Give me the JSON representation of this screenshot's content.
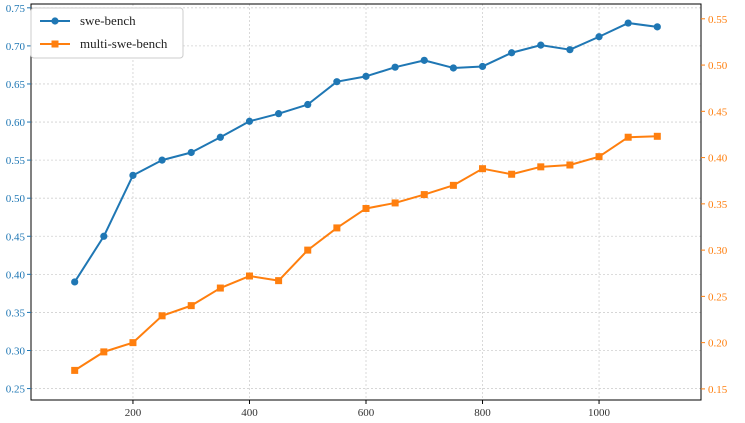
{
  "chart_data": {
    "type": "line",
    "title": "",
    "xlabel": "",
    "ylabel": "",
    "x": [
      100,
      150,
      200,
      250,
      300,
      350,
      400,
      450,
      500,
      550,
      600,
      650,
      700,
      750,
      800,
      850,
      900,
      950,
      1000,
      1050,
      1100
    ],
    "xlim": [
      25,
      1175
    ],
    "x_ticks": [
      200,
      400,
      600,
      800,
      1000
    ],
    "x_tick_labels": [
      "200",
      "400",
      "600",
      "800",
      "1000"
    ],
    "y_left": {
      "ylim": [
        0.235,
        0.755
      ],
      "ticks": [
        0.25,
        0.3,
        0.35,
        0.4,
        0.45,
        0.5,
        0.55,
        0.6,
        0.65,
        0.7,
        0.75
      ],
      "tick_labels": [
        "0.25",
        "0.30",
        "0.35",
        "0.40",
        "0.45",
        "0.50",
        "0.55",
        "0.60",
        "0.65",
        "0.70",
        "0.75"
      ],
      "color": "#1f77b4"
    },
    "y_right": {
      "ylim": [
        0.138,
        0.566
      ],
      "ticks": [
        0.15,
        0.2,
        0.25,
        0.3,
        0.35,
        0.4,
        0.45,
        0.5,
        0.55
      ],
      "tick_labels": [
        "0.15",
        "0.20",
        "0.25",
        "0.30",
        "0.35",
        "0.40",
        "0.45",
        "0.50",
        "0.55"
      ],
      "color": "#ff7f0e"
    },
    "series": [
      {
        "name": "swe-bench",
        "axis": "left",
        "color": "#1f77b4",
        "marker": "circle",
        "values": [
          0.39,
          0.45,
          0.53,
          0.55,
          0.56,
          0.58,
          0.601,
          0.611,
          0.623,
          0.653,
          0.66,
          0.672,
          0.681,
          0.671,
          0.673,
          0.691,
          0.701,
          0.695,
          0.712,
          0.73,
          0.725
        ]
      },
      {
        "name": "multi-swe-bench",
        "axis": "right",
        "color": "#ff7f0e",
        "marker": "square",
        "values": [
          0.17,
          0.19,
          0.2,
          0.229,
          0.24,
          0.259,
          0.272,
          0.267,
          0.3,
          0.324,
          0.345,
          0.351,
          0.36,
          0.37,
          0.388,
          0.382,
          0.39,
          0.392,
          0.401,
          0.422,
          0.423
        ]
      }
    ],
    "grid": true,
    "legend_position": "top-left"
  }
}
